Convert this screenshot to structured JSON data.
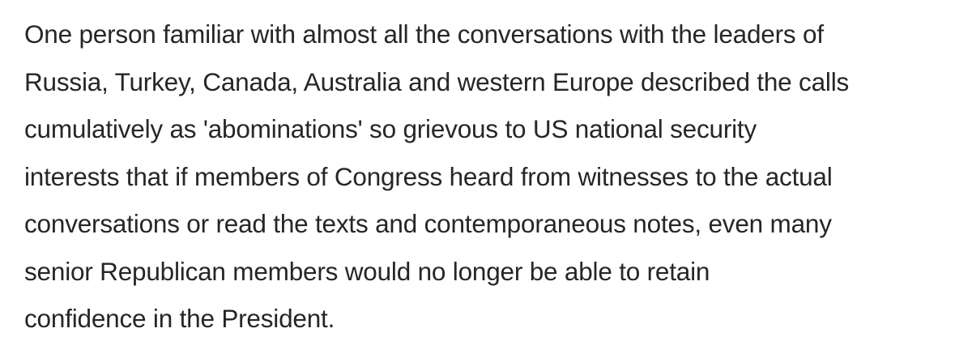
{
  "article": {
    "paragraph_lines": [
      "One person familiar with almost all the conversations with the leaders of",
      "Russia, Turkey, Canada, Australia and western Europe described the calls",
      "cumulatively as 'abominations' so grievous to US national security",
      "interests that if members of Congress heard from witnesses to the actual",
      "conversations or read the texts and contemporaneous notes, even many",
      "senior Republican members would no longer be able to retain",
      "confidence in the President."
    ]
  },
  "colors": {
    "background": "#ffffff",
    "text": "#262626"
  }
}
